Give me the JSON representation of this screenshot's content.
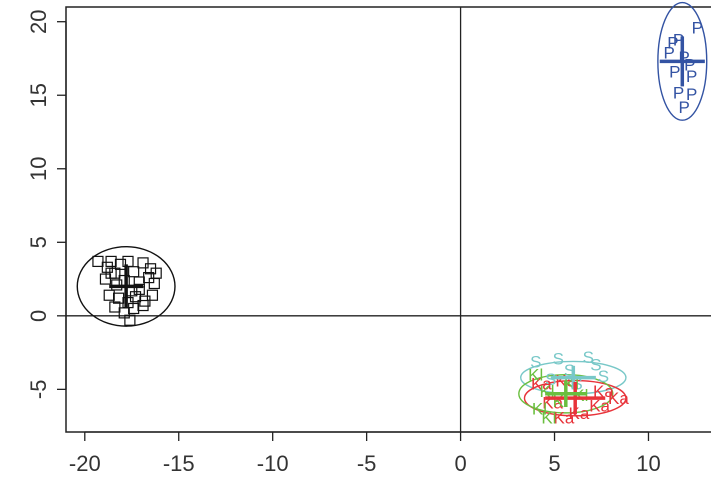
{
  "chart_data": {
    "type": "scatter",
    "title": "",
    "xlabel": "",
    "ylabel": "",
    "xlim": [
      -21,
      13.7
    ],
    "ylim": [
      -7.9,
      21
    ],
    "xticks": [
      -20,
      -15,
      -10,
      -5,
      0,
      5,
      10
    ],
    "yticks": [
      -5,
      0,
      5,
      10,
      15,
      20
    ],
    "reference_lines": {
      "x": 0,
      "y": 0
    },
    "grid": false,
    "legend": "none",
    "groups": [
      {
        "label": "□",
        "color": "#111111",
        "marker": "square",
        "centroid": [
          -17.8,
          2.0
        ],
        "ellipse_radius": [
          2.6,
          2.7
        ],
        "cross_extent": [
          0.9,
          1.5
        ],
        "points": [
          [
            -19.3,
            3.7
          ],
          [
            -18.8,
            3.3
          ],
          [
            -18.6,
            3.7
          ],
          [
            -18.1,
            3.5
          ],
          [
            -17.7,
            3.7
          ],
          [
            -18.4,
            2.9
          ],
          [
            -17.4,
            3.0
          ],
          [
            -16.9,
            3.6
          ],
          [
            -16.5,
            3.2
          ],
          [
            -18.9,
            2.5
          ],
          [
            -18.3,
            2.1
          ],
          [
            -17.9,
            2.4
          ],
          [
            -17.5,
            1.7
          ],
          [
            -17.1,
            2.3
          ],
          [
            -16.6,
            2.6
          ],
          [
            -16.3,
            2.2
          ],
          [
            -18.7,
            1.4
          ],
          [
            -18.2,
            1.2
          ],
          [
            -17.7,
            0.9
          ],
          [
            -17.3,
            1.3
          ],
          [
            -16.8,
            1.0
          ],
          [
            -16.4,
            1.4
          ],
          [
            -18.4,
            0.6
          ],
          [
            -17.9,
            0.2
          ],
          [
            -17.4,
            0.5
          ],
          [
            -16.9,
            0.7
          ],
          [
            -17.6,
            -0.3
          ],
          [
            -16.2,
            2.9
          ],
          [
            -17.1,
            1.8
          ],
          [
            -18.6,
            2.9
          ]
        ]
      },
      {
        "label": "P",
        "color": "#3353a3",
        "marker": "letter",
        "centroid": [
          11.8,
          17.3
        ],
        "ellipse_radius": [
          1.3,
          4.0
        ],
        "cross_extent": [
          1.2,
          1.7
        ],
        "points": [
          [
            11.3,
            18.6
          ],
          [
            11.6,
            18.8
          ],
          [
            12.6,
            19.6
          ],
          [
            11.1,
            17.9
          ],
          [
            11.9,
            17.6
          ],
          [
            12.2,
            17.1
          ],
          [
            11.4,
            16.6
          ],
          [
            12.3,
            16.3
          ],
          [
            11.6,
            15.2
          ],
          [
            12.3,
            15.1
          ],
          [
            11.9,
            14.2
          ]
        ]
      },
      {
        "label": "S",
        "color": "#78c8c8",
        "marker": "letter",
        "centroid": [
          6.0,
          -4.2
        ],
        "ellipse_radius": [
          2.8,
          1.1
        ],
        "cross_extent": [
          1.2,
          0.8
        ],
        "points": [
          [
            4.0,
            -3.1
          ],
          [
            5.2,
            -2.9
          ],
          [
            6.8,
            -2.8
          ],
          [
            7.2,
            -3.3
          ],
          [
            5.8,
            -3.7
          ],
          [
            4.8,
            -4.3
          ],
          [
            6.2,
            -4.6
          ],
          [
            7.6,
            -4.1
          ]
        ]
      },
      {
        "label": "Ka",
        "color": "#e8333a",
        "marker": "letter",
        "centroid": [
          6.1,
          -5.6
        ],
        "ellipse_radius": [
          2.7,
          1.2
        ],
        "cross_extent": [
          1.6,
          1.1
        ],
        "points": [
          [
            4.3,
            -4.6
          ],
          [
            5.6,
            -4.4
          ],
          [
            7.6,
            -5.1
          ],
          [
            8.4,
            -5.6
          ],
          [
            4.9,
            -5.9
          ],
          [
            6.3,
            -6.6
          ],
          [
            7.4,
            -6.1
          ],
          [
            5.5,
            -6.9
          ]
        ]
      },
      {
        "label": "Kl",
        "color": "#6abf3f",
        "marker": "letter",
        "centroid": [
          5.6,
          -5.3
        ],
        "ellipse_radius": [
          2.5,
          1.3
        ],
        "cross_extent": [
          1.1,
          0.9
        ],
        "points": [
          [
            4.0,
            -4.0
          ],
          [
            4.6,
            -5.1
          ],
          [
            4.2,
            -6.3
          ],
          [
            5.3,
            -5.8
          ],
          [
            5.9,
            -4.6
          ],
          [
            4.7,
            -6.9
          ],
          [
            6.4,
            -5.4
          ]
        ]
      }
    ]
  }
}
